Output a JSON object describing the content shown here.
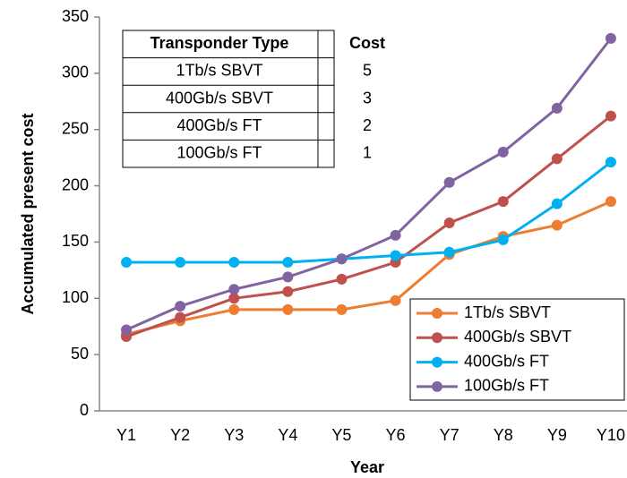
{
  "chart_data": {
    "type": "line",
    "y_label": "Accumulated present cost",
    "x_label": "Year",
    "categories": [
      "Y1",
      "Y2",
      "Y3",
      "Y4",
      "Y5",
      "Y6",
      "Y7",
      "Y8",
      "Y9",
      "Y10"
    ],
    "series": [
      {
        "name": "1Tb/s SBVT",
        "color": "#ed7d31",
        "values": [
          68,
          80,
          90,
          90,
          90,
          98,
          139,
          155,
          165,
          186
        ]
      },
      {
        "name": "400Gb/s SBVT",
        "color": "#c0504d",
        "values": [
          66,
          83,
          100,
          106,
          117,
          132,
          167,
          186,
          224,
          262
        ]
      },
      {
        "name": "400Gb/s FT",
        "color": "#00b0f0",
        "values": [
          132,
          132,
          132,
          132,
          135,
          138,
          141,
          152,
          184,
          221
        ]
      },
      {
        "name": "100Gb/s FT",
        "color": "#8064a2",
        "values": [
          72,
          93,
          108,
          119,
          135,
          156,
          203,
          230,
          269,
          331
        ]
      }
    ],
    "ylim": [
      0,
      350
    ],
    "yticks": [
      0,
      50,
      100,
      150,
      200,
      250,
      300,
      350
    ],
    "grid": false,
    "legend": "lower right",
    "table": {
      "header": [
        "Transponder Type",
        "Cost"
      ],
      "rows": [
        [
          "1Tb/s SBVT",
          5
        ],
        [
          "400Gb/s SBVT",
          3
        ],
        [
          "400Gb/s FT",
          2
        ],
        [
          "100Gb/s FT",
          1
        ]
      ]
    }
  }
}
